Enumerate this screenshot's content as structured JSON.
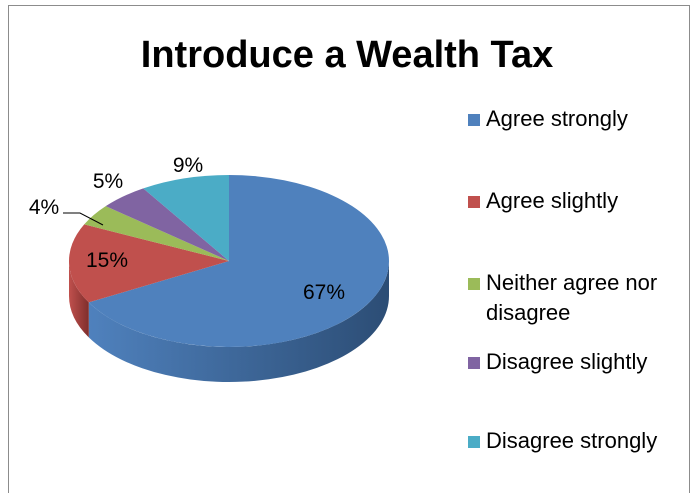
{
  "chart_data": {
    "type": "pie",
    "title": "Introduce a Wealth Tax",
    "slices": [
      {
        "label": "Agree strongly",
        "value": 67,
        "text": "67%",
        "color": "#4f81bd",
        "dark": "#2c4d75"
      },
      {
        "label": "Agree slightly",
        "value": 15,
        "text": "15%",
        "color": "#c0504d",
        "dark": "#7f2e2c"
      },
      {
        "label": "Neither agree nor disagree",
        "value": 4,
        "text": "4%",
        "color": "#9bbb59",
        "dark": "#5f7a2f"
      },
      {
        "label": "Disagree slightly",
        "value": 5,
        "text": "5%",
        "color": "#8064a2",
        "dark": "#4d3b64"
      },
      {
        "label": "Disagree strongly",
        "value": 9,
        "text": "9%",
        "color": "#4bacc6",
        "dark": "#2a6f82"
      }
    ],
    "legend_position": "right",
    "style": "3d-pie"
  }
}
